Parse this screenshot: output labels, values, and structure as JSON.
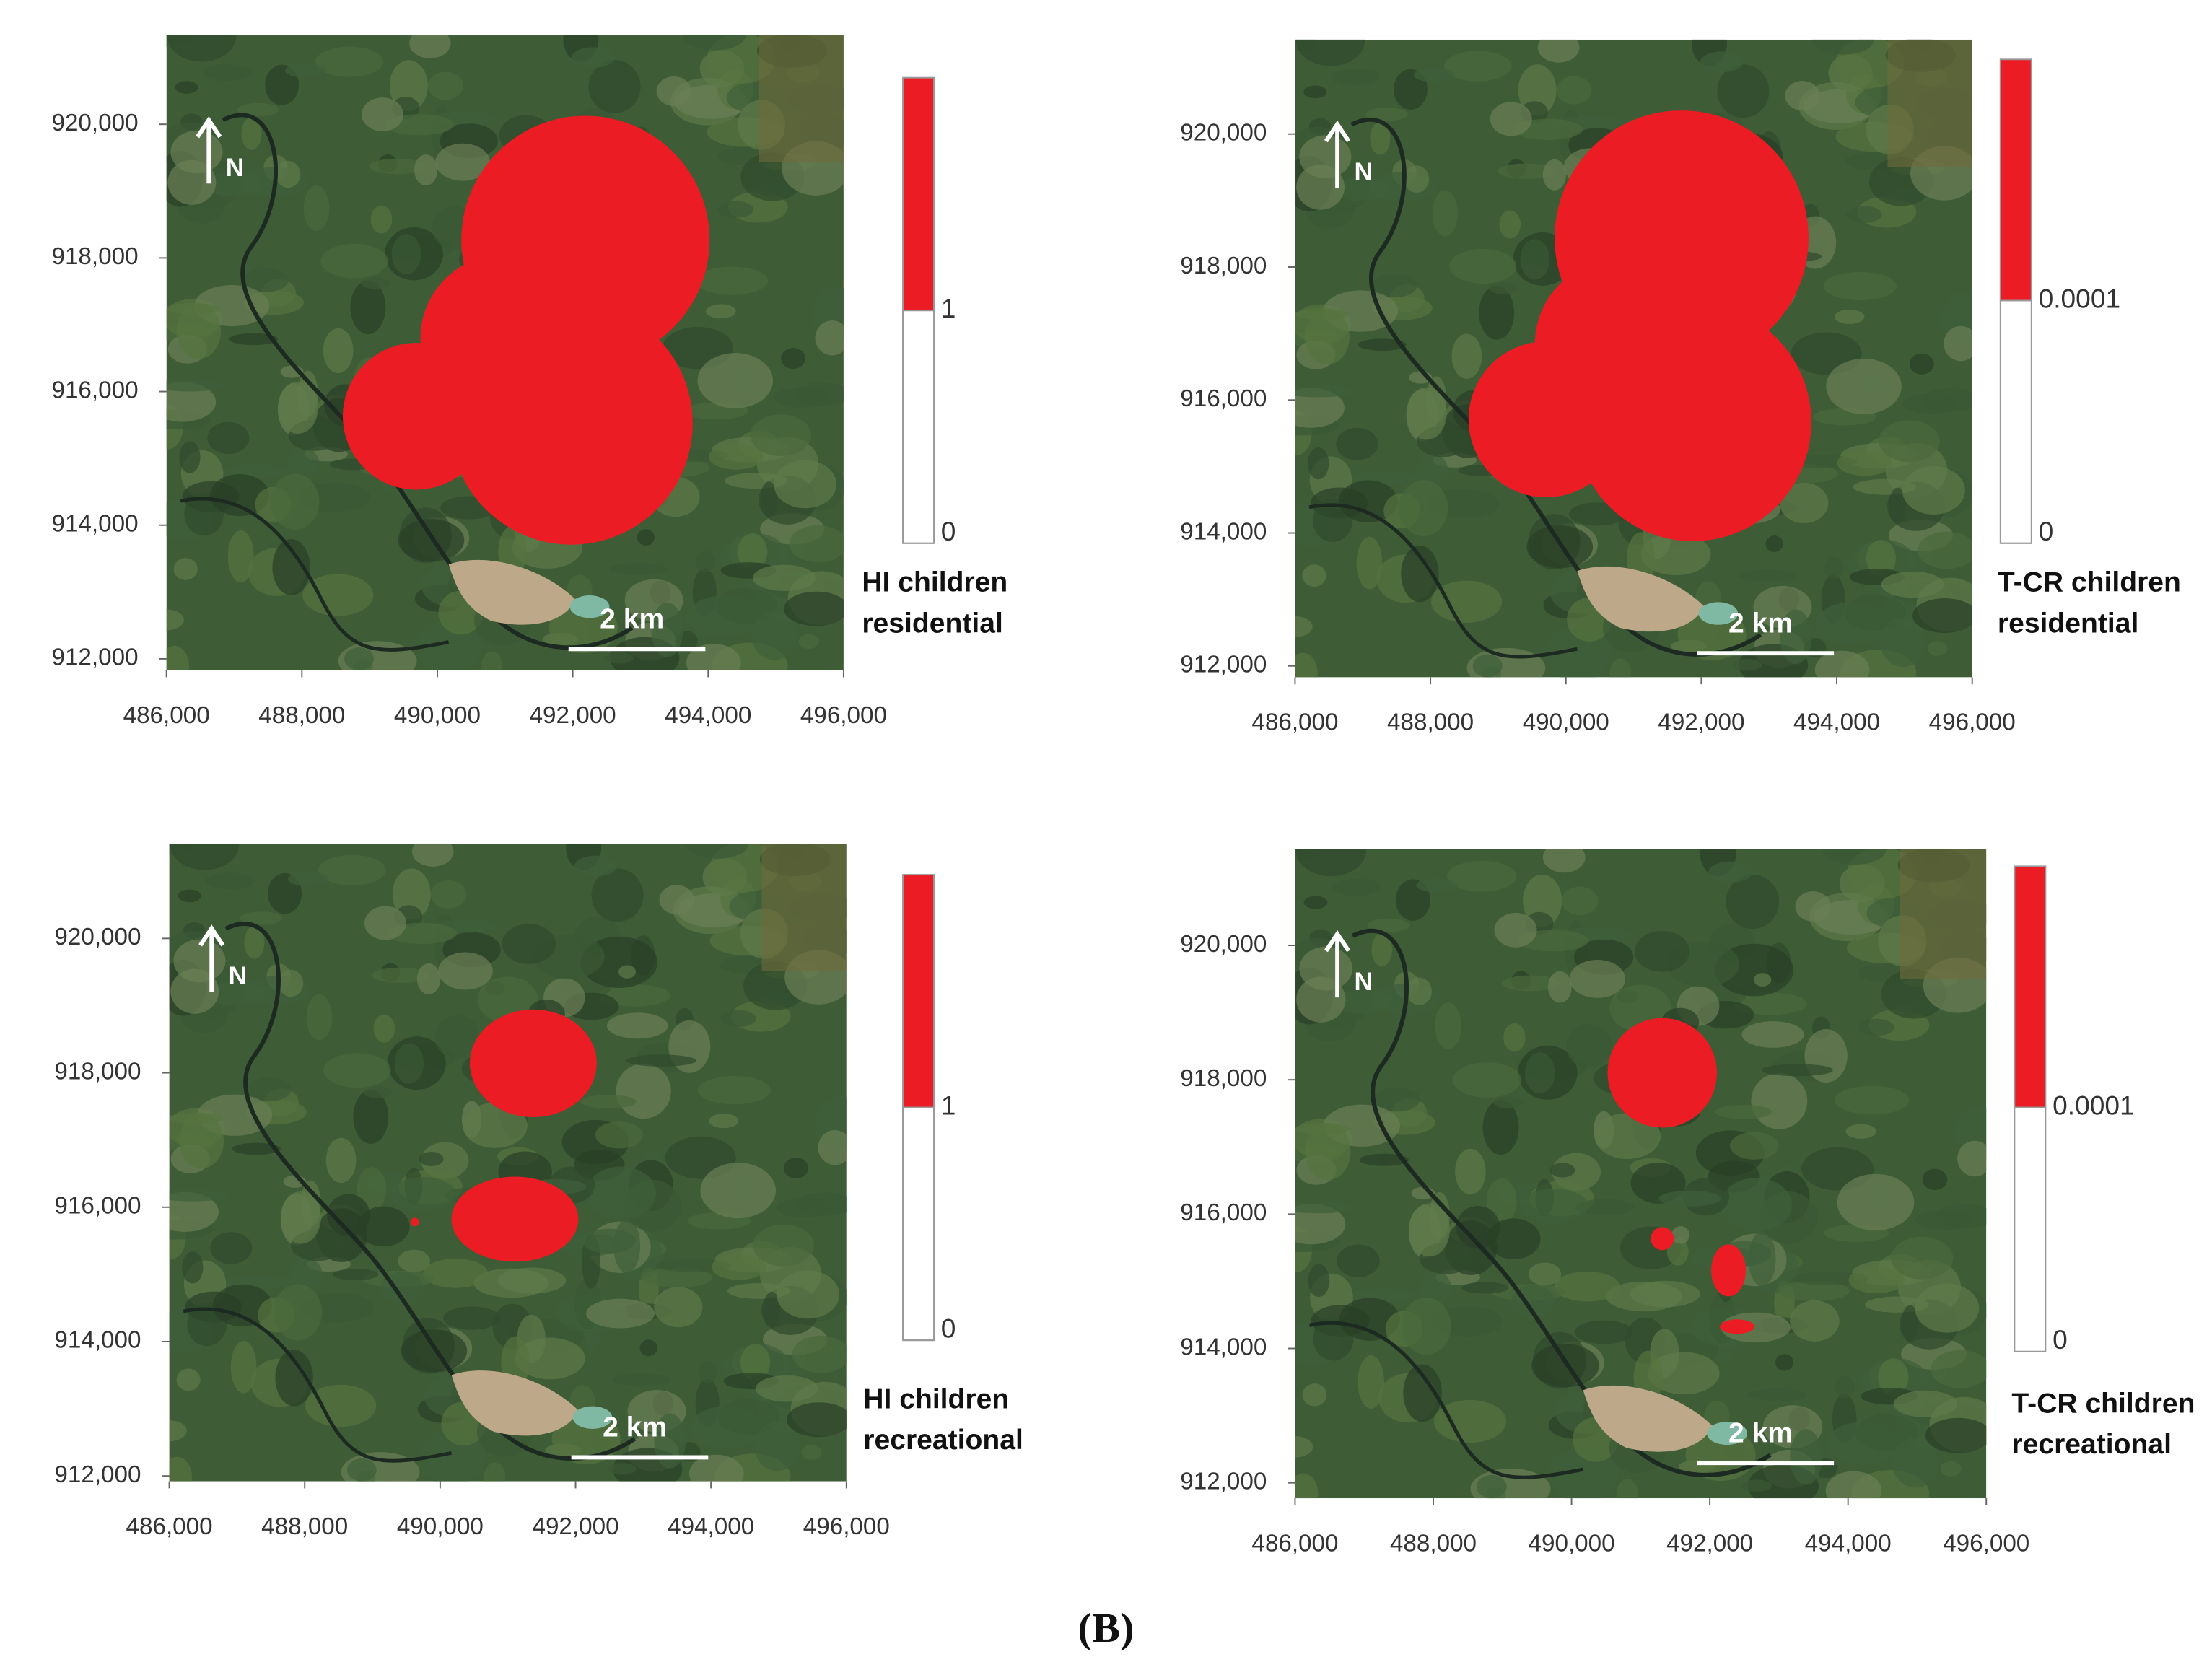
{
  "caption": "(B)",
  "panels": [
    {
      "xlim": [
        486000,
        496000
      ],
      "ylim": [
        911830,
        921330
      ],
      "xticks": [
        {
          "value": 486000,
          "label": "486,000"
        },
        {
          "value": 488000,
          "label": "488,000"
        },
        {
          "value": 490000,
          "label": "490,000"
        },
        {
          "value": 492000,
          "label": "492,000"
        },
        {
          "value": 494000,
          "label": "494,000"
        },
        {
          "value": 496000,
          "label": "496,000"
        }
      ],
      "yticks": [
        {
          "value": 912000,
          "label": "912,000"
        },
        {
          "value": 914000,
          "label": "914,000"
        },
        {
          "value": 916000,
          "label": "916,000"
        },
        {
          "value": 918000,
          "label": "918,000"
        },
        {
          "value": 920000,
          "label": "920,000"
        }
      ],
      "north": "N",
      "scale_bar": "2 km",
      "legend": {
        "ticks": [
          1,
          0
        ],
        "title": [
          "HI children",
          "residential"
        ]
      }
    },
    {
      "xlim": [
        486000,
        496000
      ],
      "ylim": [
        911830,
        921420
      ],
      "xticks": [
        {
          "value": 486000,
          "label": "486,000"
        },
        {
          "value": 488000,
          "label": "488,000"
        },
        {
          "value": 490000,
          "label": "490,000"
        },
        {
          "value": 492000,
          "label": "492,000"
        },
        {
          "value": 494000,
          "label": "494,000"
        },
        {
          "value": 496000,
          "label": "496,000"
        }
      ],
      "yticks": [
        {
          "value": 912000,
          "label": "912,000"
        },
        {
          "value": 914000,
          "label": "914,000"
        },
        {
          "value": 916000,
          "label": "916,000"
        },
        {
          "value": 918000,
          "label": "918,000"
        },
        {
          "value": 920000,
          "label": "920,000"
        }
      ],
      "north": "N",
      "scale_bar": "2 km",
      "legend": {
        "ticks": [
          0.0001,
          0
        ],
        "title": [
          "T-CR children",
          "residential"
        ]
      }
    },
    {
      "xlim": [
        486000,
        496000
      ],
      "ylim": [
        911920,
        921410
      ],
      "xticks": [
        {
          "value": 486000,
          "label": "486,000"
        },
        {
          "value": 488000,
          "label": "488,000"
        },
        {
          "value": 490000,
          "label": "490,000"
        },
        {
          "value": 492000,
          "label": "492,000"
        },
        {
          "value": 494000,
          "label": "494,000"
        },
        {
          "value": 496000,
          "label": "496,000"
        }
      ],
      "yticks": [
        {
          "value": 912000,
          "label": "912,000"
        },
        {
          "value": 914000,
          "label": "914,000"
        },
        {
          "value": 916000,
          "label": "916,000"
        },
        {
          "value": 918000,
          "label": "918,000"
        },
        {
          "value": 920000,
          "label": "920,000"
        }
      ],
      "north": "N",
      "scale_bar": "2 km",
      "legend": {
        "ticks": [
          1,
          0
        ],
        "title": [
          "HI children",
          "recreational"
        ]
      }
    },
    {
      "xlim": [
        486000,
        496000
      ],
      "ylim": [
        911770,
        921430
      ],
      "xticks": [
        {
          "value": 486000,
          "label": "486,000"
        },
        {
          "value": 488000,
          "label": "488,000"
        },
        {
          "value": 490000,
          "label": "490,000"
        },
        {
          "value": 492000,
          "label": "492,000"
        },
        {
          "value": 494000,
          "label": "494,000"
        },
        {
          "value": 496000,
          "label": "496,000"
        }
      ],
      "yticks": [
        {
          "value": 912000,
          "label": "912,000"
        },
        {
          "value": 914000,
          "label": "914,000"
        },
        {
          "value": 916000,
          "label": "916,000"
        },
        {
          "value": 918000,
          "label": "918,000"
        },
        {
          "value": 920000,
          "label": "920,000"
        }
      ],
      "north": "N",
      "scale_bar": "2 km",
      "legend": {
        "ticks": [
          0.0001,
          0
        ],
        "title": [
          "T-CR children",
          "recreational"
        ]
      }
    }
  ]
}
